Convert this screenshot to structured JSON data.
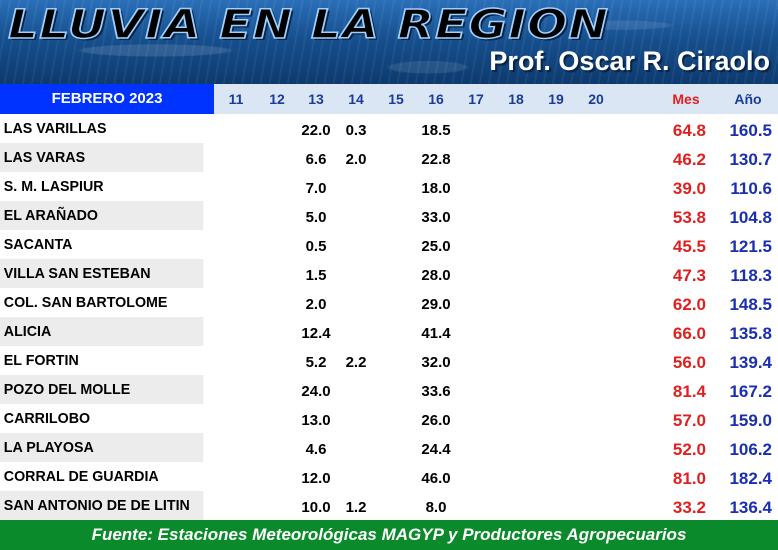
{
  "banner": {
    "title": "LLUVIA EN LA REGION",
    "author": "Prof. Oscar R. Ciraolo"
  },
  "header": {
    "month": "FEBRERO 2023",
    "days": [
      "11",
      "12",
      "13",
      "14",
      "15",
      "16",
      "17",
      "18",
      "19",
      "20"
    ],
    "mes": "Mes",
    "ano": "Año"
  },
  "rows": [
    {
      "station": "LAS VARILLAS",
      "d13": "22.0",
      "d14": "0.3",
      "d16": "18.5",
      "mes": "64.8",
      "ano": "160.5"
    },
    {
      "station": "LAS VARAS",
      "d13": "6.6",
      "d14": "2.0",
      "d16": "22.8",
      "mes": "46.2",
      "ano": "130.7"
    },
    {
      "station": "S. M. LASPIUR",
      "d13": "7.0",
      "d14": "",
      "d16": "18.0",
      "mes": "39.0",
      "ano": "110.6"
    },
    {
      "station": "EL ARAÑADO",
      "d13": "5.0",
      "d14": "",
      "d16": "33.0",
      "mes": "53.8",
      "ano": "104.8"
    },
    {
      "station": "SACANTA",
      "d13": "0.5",
      "d14": "",
      "d16": "25.0",
      "mes": "45.5",
      "ano": "121.5"
    },
    {
      "station": "VILLA SAN ESTEBAN",
      "d13": "1.5",
      "d14": "",
      "d16": "28.0",
      "mes": "47.3",
      "ano": "118.3"
    },
    {
      "station": "COL. SAN BARTOLOME",
      "d13": "2.0",
      "d14": "",
      "d16": "29.0",
      "mes": "62.0",
      "ano": "148.5"
    },
    {
      "station": "ALICIA",
      "d13": "12.4",
      "d14": "",
      "d16": "41.4",
      "mes": "66.0",
      "ano": "135.8"
    },
    {
      "station": "EL FORTIN",
      "d13": "5.2",
      "d14": "2.2",
      "d16": "32.0",
      "mes": "56.0",
      "ano": "139.4"
    },
    {
      "station": "POZO DEL MOLLE",
      "d13": "24.0",
      "d14": "",
      "d16": "33.6",
      "mes": "81.4",
      "ano": "167.2"
    },
    {
      "station": "CARRILOBO",
      "d13": "13.0",
      "d14": "",
      "d16": "26.0",
      "mes": "57.0",
      "ano": "159.0"
    },
    {
      "station": "LA PLAYOSA",
      "d13": "4.6",
      "d14": "",
      "d16": "24.4",
      "mes": "52.0",
      "ano": "106.2"
    },
    {
      "station": "CORRAL DE GUARDIA",
      "d13": "12.0",
      "d14": "",
      "d16": "46.0",
      "mes": "81.0",
      "ano": "182.4"
    },
    {
      "station": "SAN ANTONIO DE DE LITIN",
      "d13": "10.0",
      "d14": "1.2",
      "d16": "8.0",
      "mes": "33.2",
      "ano": "136.4"
    }
  ],
  "footer": "Fuente: Estaciones Meteorológicas MAGYP y Productores Agropecuarios"
}
